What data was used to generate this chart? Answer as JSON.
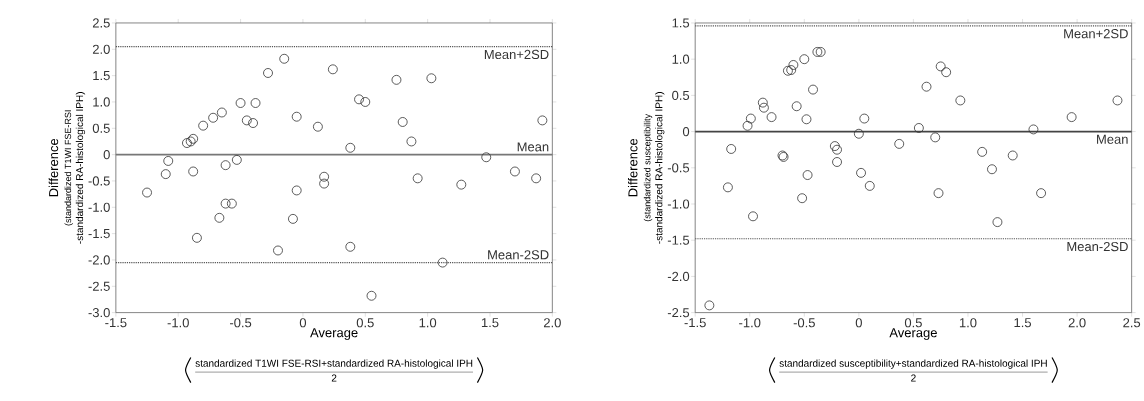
{
  "chart_data": [
    {
      "type": "scatter",
      "ylabel": "Difference",
      "xlabel": "Average",
      "marker": "circle",
      "grid": false,
      "annotations": [
        "(standardized T1WI FSE-RSI",
        "-standardized RA-histological IPH)",
        "standardized T1WI FSE-RSI+standardized RA-histological IPH",
        "2"
      ],
      "xlim": [
        -1.5,
        2.0
      ],
      "ylim": [
        -3.0,
        2.5
      ],
      "xticks": [
        {
          "value": -1.5,
          "label": "-1.5"
        },
        {
          "value": -1.0,
          "label": "-1.0"
        },
        {
          "value": -0.5,
          "label": "-0.5"
        },
        {
          "value": 0,
          "label": "0"
        },
        {
          "value": 0.5,
          "label": "0.5"
        },
        {
          "value": 1.0,
          "label": "1.0"
        },
        {
          "value": 1.5,
          "label": "1.5"
        },
        {
          "value": 2.0,
          "label": "2.0"
        }
      ],
      "yticks": [
        {
          "value": 2.5,
          "label": "2.5"
        },
        {
          "value": 2.0,
          "label": "2.0"
        },
        {
          "value": 1.5,
          "label": "1.5"
        },
        {
          "value": 1.0,
          "label": "1.0"
        },
        {
          "value": 0.5,
          "label": "0.5"
        },
        {
          "value": 0,
          "label": "0"
        },
        {
          "value": -0.5,
          "label": "-0.5"
        },
        {
          "value": -1.0,
          "label": "-1.0"
        },
        {
          "value": -1.5,
          "label": "-1.5"
        },
        {
          "value": -2.0,
          "label": "-2.0"
        },
        {
          "value": -2.5,
          "label": "-2.5"
        },
        {
          "value": -3.0,
          "label": "-3.0"
        }
      ],
      "ref_lines": [
        {
          "axis": "y",
          "value": 2.05,
          "label": "Mean+2SD",
          "line_style": "dotted",
          "color": "#555555"
        },
        {
          "axis": "y",
          "value": 0,
          "label": "Mean",
          "line_style": "solid",
          "color": "#777777"
        },
        {
          "axis": "y",
          "value": -2.05,
          "label": "Mean-2SD",
          "line_style": "dotted",
          "color": "#555555"
        }
      ],
      "series": [
        {
          "color": "#333333",
          "x": [
            -1.25,
            -1.1,
            -1.08,
            -0.93,
            -0.9,
            -0.88,
            -0.8,
            -0.72,
            -0.65,
            -0.5,
            -0.45,
            -0.4,
            -0.38,
            -0.28,
            -0.15,
            -0.88,
            -0.62,
            -0.53,
            -0.67,
            -0.62,
            -0.57,
            -0.85,
            -0.2,
            -0.05,
            0.12,
            0.24,
            0.45,
            0.5,
            0.38,
            0.75,
            0.8,
            0.87,
            1.03,
            1.92,
            0.17,
            0.17,
            -0.05,
            -0.08,
            0.38,
            0.92,
            1.27,
            1.47,
            1.7,
            1.87,
            1.12,
            0.55
          ],
          "values": [
            -0.72,
            -0.37,
            -0.12,
            0.22,
            0.25,
            0.3,
            0.55,
            0.7,
            0.8,
            0.98,
            0.65,
            0.6,
            0.98,
            1.55,
            1.82,
            -0.32,
            -0.2,
            -0.1,
            -1.2,
            -0.93,
            -0.93,
            -1.58,
            -1.82,
            0.72,
            0.53,
            1.62,
            1.05,
            1.0,
            0.13,
            1.42,
            0.62,
            0.25,
            1.45,
            0.65,
            -0.42,
            -0.55,
            -0.68,
            -1.22,
            -1.75,
            -0.45,
            -0.57,
            -0.05,
            -0.32,
            -0.45,
            -2.05,
            -2.68
          ]
        }
      ]
    },
    {
      "type": "scatter",
      "ylabel": "Difference",
      "xlabel": "Average",
      "marker": "circle",
      "grid": false,
      "annotations": [
        "(standardized susceptibility",
        "-standardized RA-histological IPH)",
        "standardized susceptibility+standardized RA-histological IPH",
        "2"
      ],
      "xlim": [
        -1.5,
        2.5
      ],
      "ylim": [
        -2.5,
        1.5
      ],
      "xticks": [
        {
          "value": -1.5,
          "label": "-1.5"
        },
        {
          "value": -1.0,
          "label": "-1.0"
        },
        {
          "value": -0.5,
          "label": "-0.5"
        },
        {
          "value": 0,
          "label": "0"
        },
        {
          "value": 0.5,
          "label": "0.5"
        },
        {
          "value": 1.0,
          "label": "1.0"
        },
        {
          "value": 1.5,
          "label": "1.5"
        },
        {
          "value": 2.0,
          "label": "2.0"
        },
        {
          "value": 2.5,
          "label": "2.5"
        }
      ],
      "yticks": [
        {
          "value": 1.5,
          "label": "1.5"
        },
        {
          "value": 1.0,
          "label": "1.0"
        },
        {
          "value": 0.5,
          "label": "0.5"
        },
        {
          "value": 0,
          "label": "0"
        },
        {
          "value": -0.5,
          "label": "-0.5"
        },
        {
          "value": -1.0,
          "label": "-1.0"
        },
        {
          "value": -1.5,
          "label": "-1.5"
        },
        {
          "value": -2.0,
          "label": "-2.0"
        },
        {
          "value": -2.5,
          "label": "-2.5"
        }
      ],
      "ref_lines": [
        {
          "axis": "y",
          "value": 1.46,
          "label": "Mean+2SD",
          "line_style": "dotted",
          "color": "#555555"
        },
        {
          "axis": "y",
          "value": 0,
          "label": "Mean",
          "line_style": "solid",
          "color": "#444444"
        },
        {
          "axis": "y",
          "value": -1.48,
          "label": "Mean-2SD",
          "line_style": "dotted",
          "color": "#555555"
        }
      ],
      "series": [
        {
          "color": "#333333",
          "x": [
            -1.37,
            -1.2,
            -1.17,
            -1.02,
            -0.99,
            -0.97,
            -0.88,
            -0.87,
            -0.8,
            -0.7,
            -0.69,
            -0.65,
            -0.62,
            -0.6,
            -0.5,
            -0.38,
            -0.35,
            -0.42,
            -0.57,
            -0.48,
            -0.52,
            -0.47,
            -0.22,
            -0.2,
            -0.2,
            0.0,
            0.05,
            0.02,
            0.1,
            0.37,
            0.55,
            0.62,
            0.7,
            0.73,
            0.75,
            0.8,
            0.93,
            1.13,
            1.22,
            1.27,
            1.41,
            1.6,
            1.67,
            1.95,
            2.37
          ],
          "values": [
            -2.4,
            -0.77,
            -0.24,
            0.08,
            0.18,
            -1.17,
            0.4,
            0.33,
            0.2,
            -0.33,
            -0.35,
            0.84,
            0.85,
            0.92,
            1.0,
            1.1,
            1.1,
            0.58,
            0.35,
            0.17,
            -0.92,
            -0.6,
            -0.2,
            -0.25,
            -0.42,
            -0.03,
            0.18,
            -0.57,
            -0.75,
            -0.17,
            0.05,
            0.62,
            -0.08,
            -0.85,
            0.9,
            0.82,
            0.43,
            -0.28,
            -0.52,
            -1.25,
            -0.33,
            0.03,
            -0.85,
            0.2,
            0.43
          ]
        }
      ]
    }
  ]
}
